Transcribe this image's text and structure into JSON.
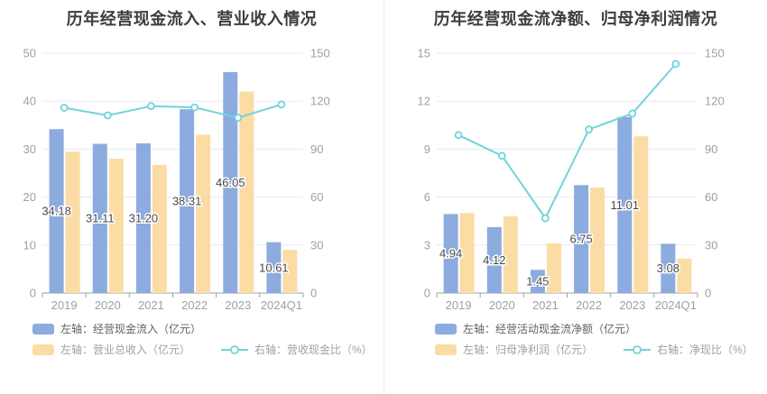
{
  "accent_colors": {
    "bar_blue": "#8CABDE",
    "bar_orange": "#FBDCA4",
    "line_cyan": "#72D3DB",
    "grid_line": "#E3E9F5",
    "axis_line": "#9AA0A6"
  },
  "chart_data": [
    {
      "type": "combo",
      "title": "历年经营现金流入、营业收入情况",
      "categories": [
        "2019",
        "2020",
        "2021",
        "2022",
        "2023",
        "2024Q1"
      ],
      "left_axis": {
        "min": 0,
        "max": 50,
        "ticks": [
          0,
          10,
          20,
          30,
          40,
          50
        ]
      },
      "right_axis": {
        "min": 0,
        "max": 150,
        "ticks": [
          0,
          30,
          60,
          90,
          120,
          150
        ]
      },
      "grid": true,
      "legend_position": "bottom-left",
      "legend_rows": [
        [
          0
        ],
        [
          1,
          2
        ]
      ],
      "series": [
        {
          "name": "左轴：经营现金流入（亿元）",
          "type": "bar",
          "axis": "left",
          "color": "#8CABDE",
          "values": [
            34.18,
            31.11,
            31.2,
            38.31,
            46.05,
            10.61
          ],
          "labels": [
            "34.18",
            "31.11",
            "31.20",
            "38.31",
            "46.05",
            "10.61"
          ]
        },
        {
          "name": "左轴：营业总收入（亿元）",
          "type": "bar",
          "axis": "left",
          "color": "#FBDCA4",
          "values": [
            29.5,
            28.0,
            26.7,
            33.0,
            42.0,
            9.0
          ]
        },
        {
          "name": "右轴：营收现金比（%）",
          "type": "line",
          "axis": "right",
          "color": "#72D3DB",
          "values": [
            115.9,
            111.1,
            116.9,
            116.1,
            109.6,
            117.9
          ]
        }
      ]
    },
    {
      "type": "combo",
      "title": "历年经营现金流净额、归母净利润情况",
      "categories": [
        "2019",
        "2020",
        "2021",
        "2022",
        "2023",
        "2024Q1"
      ],
      "left_axis": {
        "min": 0,
        "max": 15,
        "ticks": [
          0,
          3,
          6,
          9,
          12,
          15
        ]
      },
      "right_axis": {
        "min": 0,
        "max": 150,
        "ticks": [
          0,
          30,
          60,
          90,
          120,
          150
        ]
      },
      "grid": true,
      "legend_position": "bottom-left",
      "legend_rows": [
        [
          0
        ],
        [
          1,
          2
        ]
      ],
      "series": [
        {
          "name": "左轴：经营活动现金流净额（亿元）",
          "type": "bar",
          "axis": "left",
          "color": "#8CABDE",
          "values": [
            4.94,
            4.12,
            1.45,
            6.75,
            11.01,
            3.08
          ],
          "labels": [
            "4.94",
            "4.12",
            "1.45",
            "6.75",
            "11.01",
            "3.08"
          ]
        },
        {
          "name": "左轴：归母净利润（亿元）",
          "type": "bar",
          "axis": "left",
          "color": "#FBDCA4",
          "values": [
            5.0,
            4.8,
            3.1,
            6.6,
            9.8,
            2.15
          ]
        },
        {
          "name": "右轴：净现比（%）",
          "type": "line",
          "axis": "right",
          "color": "#72D3DB",
          "values": [
            98.8,
            85.8,
            46.8,
            102.3,
            112.3,
            143.3
          ]
        }
      ]
    }
  ]
}
